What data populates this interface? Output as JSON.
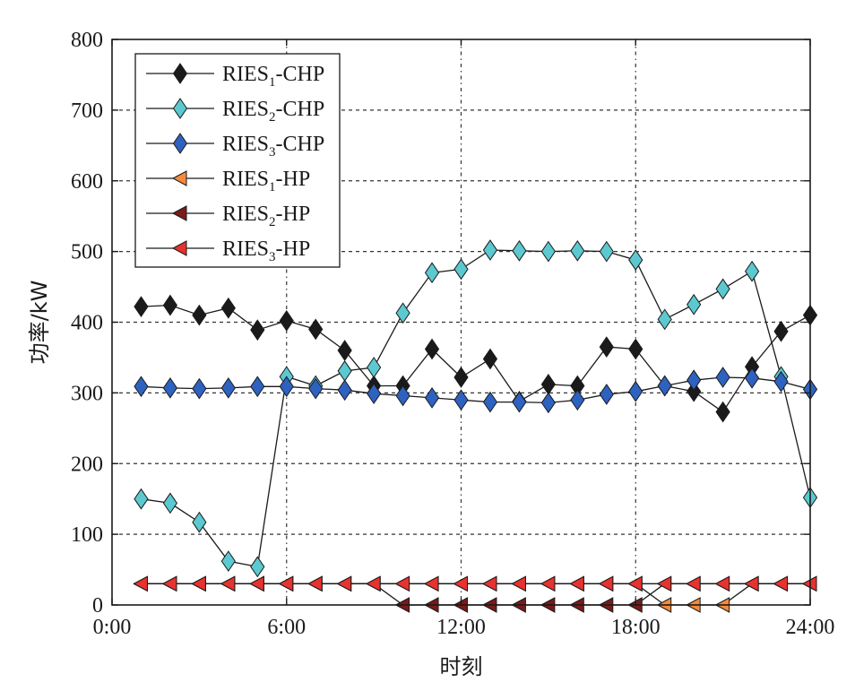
{
  "chart_data": {
    "type": "line",
    "title": "",
    "xlabel": "时刻",
    "ylabel": "功率/kW",
    "xlim": [
      0,
      24
    ],
    "ylim": [
      0,
      800
    ],
    "x_ticks": [
      "0:00",
      "6:00",
      "12:00",
      "18:00",
      "24:00"
    ],
    "y_ticks": [
      "0",
      "100",
      "200",
      "300",
      "400",
      "500",
      "600",
      "700",
      "800"
    ],
    "grid": true,
    "legend_position": "top-left",
    "x": [
      1,
      2,
      3,
      4,
      5,
      6,
      7,
      8,
      9,
      10,
      11,
      12,
      13,
      14,
      15,
      16,
      17,
      18,
      19,
      20,
      21,
      22,
      23,
      24
    ],
    "series": [
      {
        "name": "RIES1-CHP",
        "label_base": "RIES",
        "label_sub": "1",
        "label_tail": "-CHP",
        "marker": "diamond",
        "color": "#1a1a1a",
        "values": [
          422,
          424,
          410,
          420,
          389,
          402,
          390,
          360,
          310,
          310,
          362,
          322,
          348,
          288,
          312,
          310,
          365,
          362,
          310,
          302,
          273,
          337,
          387,
          410
        ]
      },
      {
        "name": "RIES2-CHP",
        "label_base": "RIES",
        "label_sub": "2",
        "label_tail": "-CHP",
        "marker": "diamond",
        "color": "#5cc8d0",
        "values": [
          150,
          144,
          117,
          62,
          54,
          323,
          310,
          331,
          336,
          413,
          470,
          475,
          502,
          501,
          500,
          501,
          500,
          488,
          404,
          425,
          447,
          472,
          323,
          152
        ]
      },
      {
        "name": "RIES3-CHP",
        "label_base": "RIES",
        "label_sub": "3",
        "label_tail": "-CHP",
        "marker": "diamond",
        "color": "#2e62c0",
        "values": [
          309,
          307,
          306,
          307,
          309,
          309,
          306,
          304,
          299,
          296,
          293,
          290,
          287,
          287,
          286,
          290,
          298,
          302,
          310,
          318,
          322,
          321,
          316,
          305
        ]
      },
      {
        "name": "RIES1-HP",
        "label_base": "RIES",
        "label_sub": "1",
        "label_tail": "-HP",
        "marker": "triangle-left",
        "color": "#f58a3a",
        "values": [
          30,
          30,
          30,
          30,
          30,
          30,
          30,
          30,
          30,
          30,
          30,
          30,
          30,
          30,
          30,
          30,
          30,
          30,
          0,
          0,
          0,
          30,
          30,
          30
        ]
      },
      {
        "name": "RIES2-HP",
        "label_base": "RIES",
        "label_sub": "2",
        "label_tail": "-HP",
        "marker": "triangle-left",
        "color": "#7a1a1a",
        "values": [
          30,
          30,
          30,
          30,
          30,
          30,
          30,
          30,
          30,
          0,
          0,
          0,
          0,
          0,
          0,
          0,
          0,
          0,
          30,
          30,
          30,
          30,
          30,
          30
        ]
      },
      {
        "name": "RIES3-HP",
        "label_base": "RIES",
        "label_sub": "3",
        "label_tail": "-HP",
        "marker": "triangle-left",
        "color": "#e8322e",
        "values": [
          30,
          30,
          30,
          30,
          30,
          30,
          30,
          30,
          30,
          30,
          30,
          30,
          30,
          30,
          30,
          30,
          30,
          30,
          30,
          30,
          30,
          30,
          30,
          30
        ]
      }
    ]
  }
}
